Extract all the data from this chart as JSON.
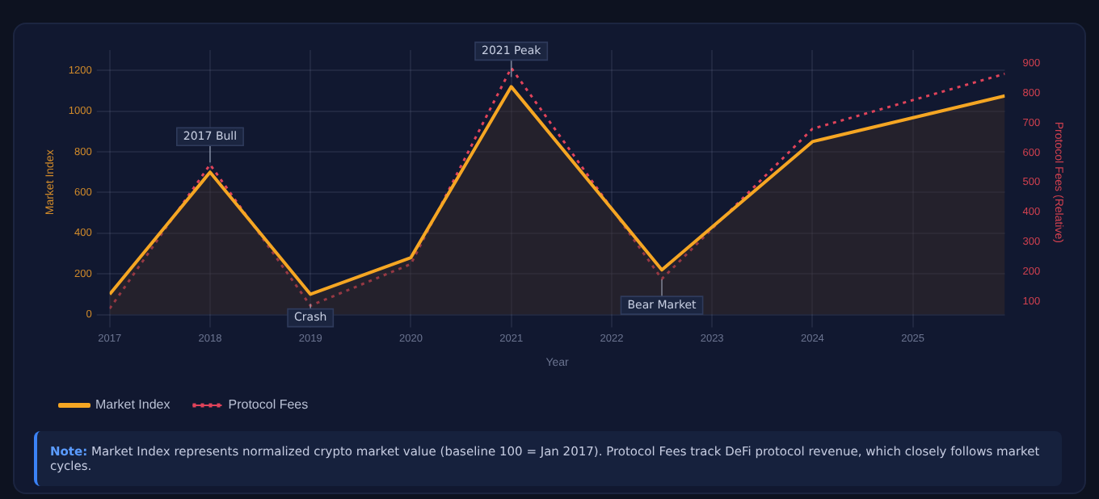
{
  "chart_data": {
    "type": "line",
    "xlabel": "Year",
    "ylabel": "Market Index",
    "y2label": "Protocol Fees (Relative)",
    "x": [
      "2017-01",
      "2018-01",
      "2019-01",
      "2020-01",
      "2021-01",
      "2022-07",
      "2024-01",
      "2025-12"
    ],
    "series": [
      {
        "name": "Market Index",
        "color": "#f5a623",
        "values": [
          100,
          700,
          100,
          280,
          1120,
          220,
          850,
          1075
        ],
        "type": "area",
        "line_style": "solid"
      },
      {
        "name": "Protocol Fees",
        "color": "#e0435a",
        "values": [
          75,
          560,
          85,
          225,
          885,
          175,
          680,
          865
        ],
        "axis": "y2",
        "line_style": "dotted"
      }
    ],
    "xlim": [
      "2017-01",
      "2025-12"
    ],
    "xticks": [
      {
        "value": "2017",
        "label": "2017"
      },
      {
        "value": "2018",
        "label": "2018"
      },
      {
        "value": "2019",
        "label": "2019"
      },
      {
        "value": "2020",
        "label": "2020"
      },
      {
        "value": "2021",
        "label": "2021"
      },
      {
        "value": "2022",
        "label": "2022"
      },
      {
        "value": "2023",
        "label": "2023"
      },
      {
        "value": "2024",
        "label": "2024"
      },
      {
        "value": "2025",
        "label": "2025"
      }
    ],
    "ylim": [
      0,
      1300
    ],
    "yticks": [
      0,
      200,
      400,
      600,
      800,
      1000,
      1200
    ],
    "y2lim": [
      55,
      945
    ],
    "y2ticks": [
      100,
      200,
      300,
      400,
      500,
      600,
      700,
      800,
      900
    ],
    "grid": true,
    "legend": "bottom",
    "marker": "none",
    "annotations": [
      {
        "text": "2017 Bull",
        "x": "2018-01",
        "y": 700
      },
      {
        "text": "Crash",
        "x": "2019-01",
        "y": 100
      },
      {
        "text": "2021 Peak",
        "x": "2021-01",
        "y": 1120
      },
      {
        "text": "Bear Market",
        "x": "2022-07",
        "y": 220
      },
      "Note: Market Index represents normalized crypto market value (baseline 100 = Jan 2017). Protocol Fees track DeFi protocol revenue, which closely follows market cycles."
    ]
  }
}
